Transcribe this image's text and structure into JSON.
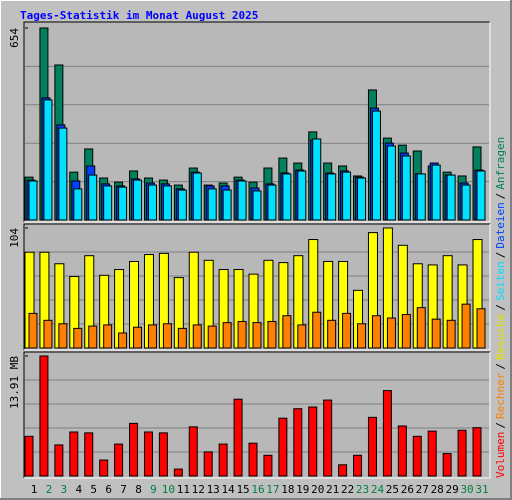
{
  "chart_data": {
    "type": "bar",
    "title": "Tages-Statistik im Monat August 2025",
    "categories": [
      "1",
      "2",
      "3",
      "4",
      "5",
      "6",
      "7",
      "8",
      "9",
      "10",
      "11",
      "12",
      "13",
      "14",
      "15",
      "16",
      "17",
      "18",
      "19",
      "20",
      "21",
      "22",
      "23",
      "24",
      "25",
      "26",
      "27",
      "28",
      "29",
      "30",
      "31"
    ],
    "category_colors": [
      "#000000",
      "#008040",
      "#008040",
      "#000000",
      "#000000",
      "#000000",
      "#000000",
      "#000000",
      "#008040",
      "#008040",
      "#000000",
      "#000000",
      "#000000",
      "#000000",
      "#000000",
      "#008040",
      "#008040",
      "#000000",
      "#000000",
      "#000000",
      "#000000",
      "#000000",
      "#008040",
      "#008040",
      "#000000",
      "#000000",
      "#000000",
      "#000000",
      "#000000",
      "#008040",
      "#008040"
    ],
    "legend_separator": "/",
    "panels": [
      {
        "ylim": [
          0,
          654
        ],
        "yticks": [
          654
        ],
        "series": [
          {
            "name": "Anfragen",
            "color": "#00805c",
            "values": [
              146,
              654,
              528,
              163,
              242,
              143,
              129,
              167,
              143,
              136,
              119,
              177,
              119,
              126,
              146,
              129,
              177,
              211,
              194,
              300,
              194,
              184,
              150,
              443,
              279,
              255,
              235,
              184,
              163,
              150,
              249
            ]
          },
          {
            "name": "Dateien",
            "color": "#0040ff",
            "values": [
              136,
              416,
              324,
              133,
              184,
              123,
              116,
              140,
              126,
              123,
              106,
              163,
              116,
              116,
              136,
              109,
              123,
              160,
              170,
              272,
              160,
              167,
              146,
              381,
              262,
              228,
              157,
              194,
              153,
              126,
              170
            ]
          },
          {
            "name": "Seiten",
            "color": "#00e0ff",
            "values": [
              133,
              409,
              313,
              106,
              153,
              116,
              112,
              136,
              119,
              116,
              102,
              160,
              106,
              102,
              133,
              99,
              119,
              157,
              167,
              276,
              157,
              163,
              143,
              371,
              252,
              218,
              157,
              187,
              153,
              119,
              167
            ]
          }
        ]
      },
      {
        "ylim": [
          0,
          104
        ],
        "yticks": [
          104
        ],
        "series": [
          {
            "name": "Besuche",
            "color": "#ffff00",
            "values": [
              83,
              83,
              73,
              62,
              80,
              63,
              68,
              75,
              81,
              82,
              61,
              83,
              76,
              68,
              68,
              64,
              76,
              74,
              80,
              94,
              75,
              75,
              50,
              100,
              104,
              89,
              73,
              72,
              80,
              72,
              94
            ]
          },
          {
            "name": "Rechner",
            "color": "#ff8000",
            "values": [
              30,
              24,
              21,
              17,
              19,
              20,
              13,
              18,
              20,
              21,
              17,
              20,
              19,
              22,
              23,
              22,
              23,
              28,
              20,
              31,
              24,
              30,
              21,
              28,
              26,
              29,
              35,
              25,
              24,
              38,
              34
            ]
          }
        ]
      },
      {
        "ylim": [
          0,
          13.91
        ],
        "yticks": [
          {
            "value": 13.91,
            "label": "13.91 MB"
          }
        ],
        "series": [
          {
            "name": "Volumen",
            "color": "#ff0000",
            "values": [
              4.6,
              13.91,
              3.6,
              5.1,
              5.0,
              1.85,
              3.7,
              6.1,
              5.1,
              5.0,
              0.8,
              5.7,
              2.8,
              3.7,
              8.9,
              3.8,
              2.4,
              6.7,
              7.8,
              8.0,
              8.8,
              1.3,
              2.4,
              6.8,
              9.9,
              5.8,
              4.6,
              5.2,
              2.6,
              5.3,
              5.6
            ]
          }
        ]
      }
    ]
  }
}
